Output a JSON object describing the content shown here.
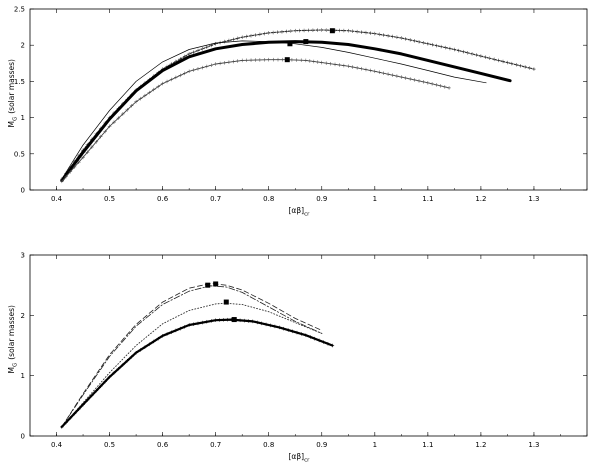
{
  "chart_data": [
    {
      "type": "line",
      "panel": "top",
      "xlabel": "[αβ]",
      "xlabel_sub": "cr",
      "ylabel": "M",
      "ylabel_sub": "G",
      "ylabel_rest": "(solar masses)",
      "xlim": [
        0.35,
        1.4
      ],
      "ylim": [
        0,
        2.5
      ],
      "x_ticks": [
        0.4,
        0.5,
        0.6,
        0.7,
        0.8,
        0.9,
        1,
        1.1,
        1.2,
        1.3
      ],
      "x_tick_labels": [
        "0.4",
        "0.5",
        "0.6",
        "0.7",
        "0.8",
        "0.9",
        "1",
        "1.1",
        "1.2",
        "1.3"
      ],
      "y_ticks": [
        0,
        0.5,
        1,
        1.5,
        2,
        2.5
      ],
      "y_tick_labels": [
        "0",
        "0.5",
        "1",
        "1.5",
        "2",
        "2.5"
      ],
      "grid": false,
      "series": [
        {
          "style": "dotted-plus",
          "x": [
            0.41,
            0.45,
            0.5,
            0.55,
            0.6,
            0.65,
            0.7,
            0.75,
            0.8,
            0.85,
            0.9,
            0.95,
            1.0,
            1.05,
            1.1,
            1.15,
            1.2,
            1.25,
            1.3
          ],
          "y": [
            0.15,
            0.55,
            1.0,
            1.38,
            1.67,
            1.88,
            2.02,
            2.11,
            2.17,
            2.2,
            2.21,
            2.2,
            2.16,
            2.1,
            2.02,
            1.94,
            1.85,
            1.76,
            1.67
          ]
        },
        {
          "style": "thick",
          "x": [
            0.41,
            0.45,
            0.5,
            0.55,
            0.6,
            0.65,
            0.7,
            0.75,
            0.8,
            0.85,
            0.9,
            0.95,
            1.0,
            1.05,
            1.1,
            1.15,
            1.2,
            1.255
          ],
          "y": [
            0.13,
            0.52,
            0.98,
            1.37,
            1.65,
            1.84,
            1.95,
            2.01,
            2.04,
            2.05,
            2.04,
            2.01,
            1.95,
            1.88,
            1.79,
            1.7,
            1.61,
            1.51
          ]
        },
        {
          "style": "thin",
          "x": [
            0.41,
            0.45,
            0.5,
            0.55,
            0.6,
            0.65,
            0.7,
            0.75,
            0.8,
            0.85,
            0.9,
            0.95,
            1.0,
            1.05,
            1.1,
            1.15,
            1.21
          ],
          "y": [
            0.15,
            0.62,
            1.1,
            1.5,
            1.77,
            1.94,
            2.03,
            2.06,
            2.05,
            2.02,
            1.97,
            1.9,
            1.82,
            1.74,
            1.65,
            1.56,
            1.48
          ]
        },
        {
          "style": "plus",
          "x": [
            0.41,
            0.45,
            0.5,
            0.55,
            0.6,
            0.65,
            0.7,
            0.75,
            0.8,
            0.835,
            0.87,
            0.9,
            0.95,
            1.0,
            1.05,
            1.1,
            1.14
          ],
          "y": [
            0.12,
            0.45,
            0.88,
            1.22,
            1.47,
            1.64,
            1.74,
            1.79,
            1.8,
            1.8,
            1.79,
            1.76,
            1.71,
            1.64,
            1.56,
            1.48,
            1.41
          ]
        }
      ],
      "max_markers": [
        {
          "x": 0.92,
          "y": 2.2
        },
        {
          "x": 0.87,
          "y": 2.05
        },
        {
          "x": 0.84,
          "y": 2.02
        },
        {
          "x": 0.835,
          "y": 1.8
        }
      ]
    },
    {
      "type": "line",
      "panel": "bottom",
      "xlabel": "[αβ]",
      "xlabel_sub": "cr",
      "ylabel": "M",
      "ylabel_sub": "G",
      "ylabel_rest": "(solar masses)",
      "xlim": [
        0.35,
        1.4
      ],
      "ylim": [
        0,
        3
      ],
      "x_ticks": [
        0.4,
        0.5,
        0.6,
        0.7,
        0.8,
        0.9,
        1,
        1.1,
        1.2,
        1.3
      ],
      "x_tick_labels": [
        "0.4",
        "0.5",
        "0.6",
        "0.7",
        "0.8",
        "0.9",
        "1",
        "1.1",
        "1.2",
        "1.3"
      ],
      "y_ticks": [
        0,
        1,
        2,
        3
      ],
      "y_tick_labels": [
        "0",
        "1",
        "2",
        "3"
      ],
      "grid": false,
      "series": [
        {
          "style": "dashed",
          "x": [
            0.41,
            0.45,
            0.5,
            0.55,
            0.6,
            0.65,
            0.69,
            0.72,
            0.75,
            0.8,
            0.85,
            0.9
          ],
          "y": [
            0.15,
            0.7,
            1.35,
            1.85,
            2.22,
            2.45,
            2.53,
            2.5,
            2.42,
            2.2,
            1.95,
            1.75
          ]
        },
        {
          "style": "dashdot",
          "x": [
            0.41,
            0.45,
            0.5,
            0.55,
            0.6,
            0.65,
            0.69,
            0.72,
            0.75,
            0.8,
            0.85,
            0.9
          ],
          "y": [
            0.15,
            0.68,
            1.32,
            1.82,
            2.18,
            2.4,
            2.49,
            2.47,
            2.38,
            2.14,
            1.9,
            1.7
          ]
        },
        {
          "style": "dotted",
          "x": [
            0.41,
            0.45,
            0.5,
            0.55,
            0.6,
            0.65,
            0.7,
            0.72,
            0.75,
            0.8,
            0.85,
            0.9
          ],
          "y": [
            0.15,
            0.55,
            1.05,
            1.5,
            1.86,
            2.08,
            2.19,
            2.2,
            2.18,
            2.06,
            1.88,
            1.7
          ]
        },
        {
          "style": "thick-plus",
          "x": [
            0.41,
            0.45,
            0.5,
            0.55,
            0.6,
            0.65,
            0.7,
            0.73,
            0.77,
            0.82,
            0.87,
            0.92
          ],
          "y": [
            0.15,
            0.52,
            0.98,
            1.38,
            1.66,
            1.84,
            1.92,
            1.93,
            1.9,
            1.8,
            1.67,
            1.5
          ]
        }
      ],
      "max_markers": [
        {
          "x": 0.685,
          "y": 2.5
        },
        {
          "x": 0.7,
          "y": 2.52
        },
        {
          "x": 0.72,
          "y": 2.22
        },
        {
          "x": 0.735,
          "y": 1.93
        }
      ]
    }
  ]
}
